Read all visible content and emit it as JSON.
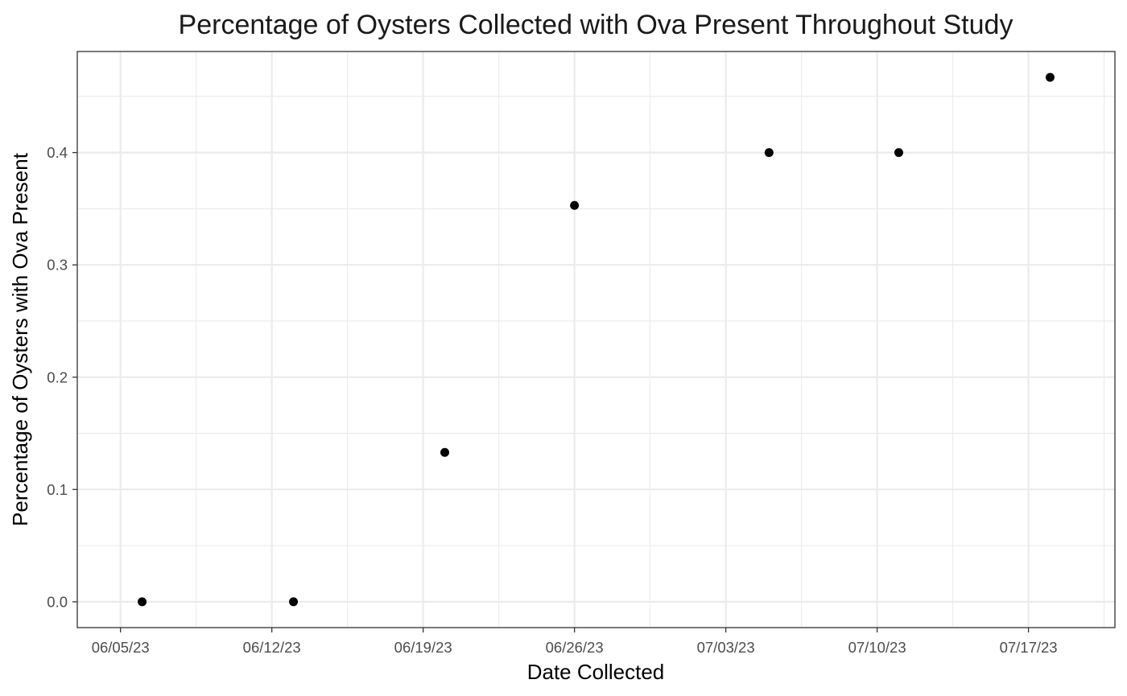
{
  "chart_data": {
    "type": "scatter",
    "title": "Percentage of Oysters Collected with Ova Present Throughout Study",
    "xlabel": "Date Collected",
    "ylabel": "Percentage of Oysters with Ova Present",
    "x_type": "date",
    "xlim": [
      "2023-06-03",
      "2023-07-21"
    ],
    "ylim": [
      -0.023,
      0.49
    ],
    "x_ticks": [
      {
        "date": "2023-06-05",
        "label": "06/05/23"
      },
      {
        "date": "2023-06-12",
        "label": "06/12/23"
      },
      {
        "date": "2023-06-19",
        "label": "06/19/23"
      },
      {
        "date": "2023-06-26",
        "label": "06/26/23"
      },
      {
        "date": "2023-07-03",
        "label": "07/03/23"
      },
      {
        "date": "2023-07-10",
        "label": "07/10/23"
      },
      {
        "date": "2023-07-17",
        "label": "07/17/23"
      }
    ],
    "y_ticks": [
      {
        "value": 0.0,
        "label": "0.0"
      },
      {
        "value": 0.1,
        "label": "0.1"
      },
      {
        "value": 0.2,
        "label": "0.2"
      },
      {
        "value": 0.3,
        "label": "0.3"
      },
      {
        "value": 0.4,
        "label": "0.4"
      }
    ],
    "points": [
      {
        "x": "2023-06-06",
        "y": 0.0
      },
      {
        "x": "2023-06-13",
        "y": 0.0
      },
      {
        "x": "2023-06-20",
        "y": 0.133
      },
      {
        "x": "2023-06-26",
        "y": 0.353
      },
      {
        "x": "2023-07-05",
        "y": 0.4
      },
      {
        "x": "2023-07-11",
        "y": 0.4
      },
      {
        "x": "2023-07-18",
        "y": 0.467
      }
    ],
    "grid": true,
    "legend": "none",
    "colors": {
      "points": "#000000",
      "grid": "#ebebeb",
      "panel_border": "#333333"
    }
  }
}
